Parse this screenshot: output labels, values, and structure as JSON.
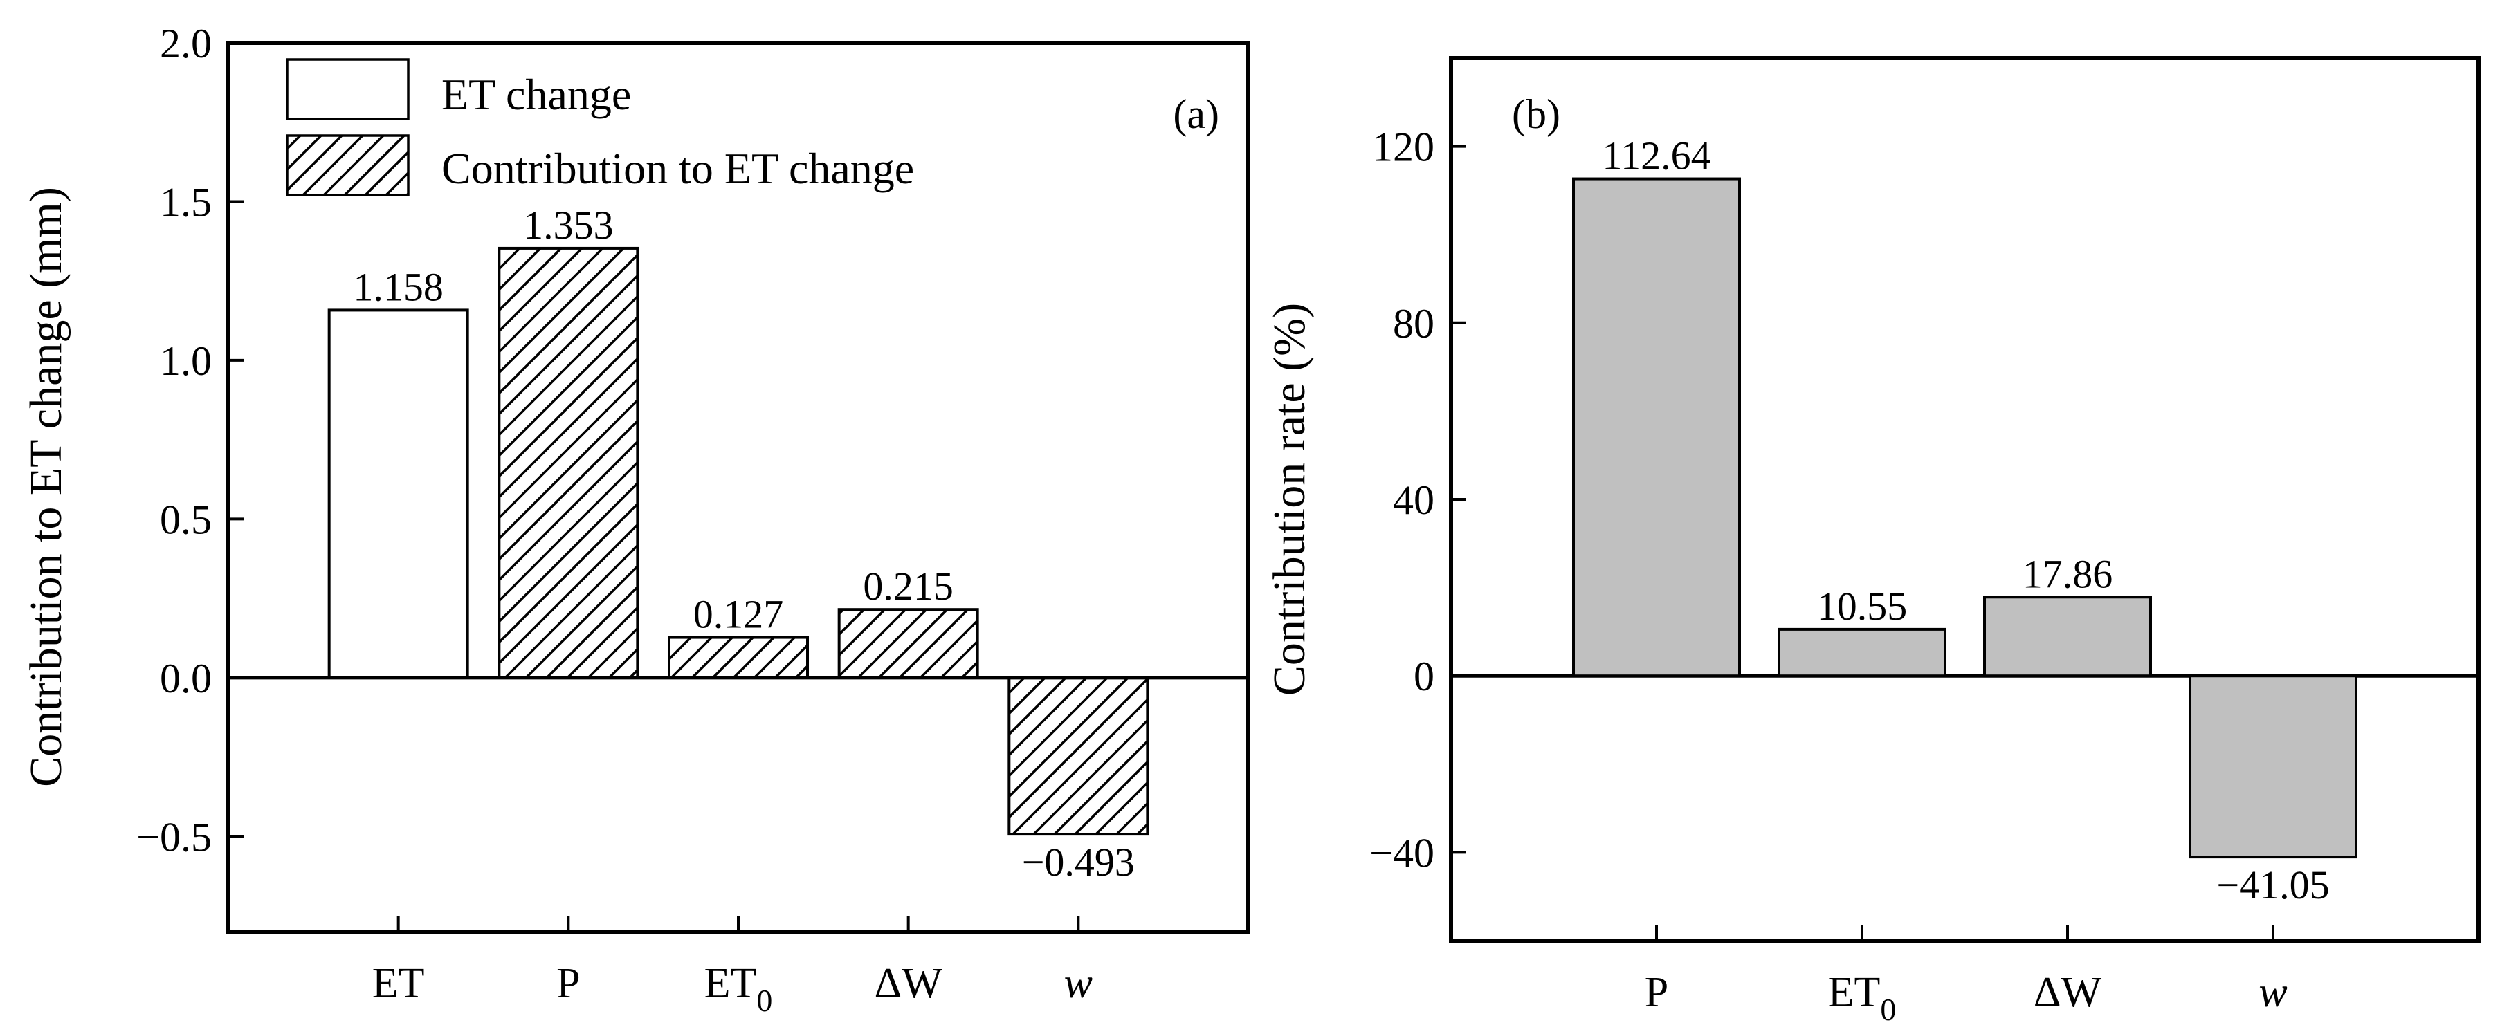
{
  "chart_data": [
    {
      "panel": "(a)",
      "type": "bar",
      "ylabel": "Contribution to ET change (mm)",
      "xlabel": "",
      "ylim": [
        -0.8,
        2.0
      ],
      "yticks": [
        -0.5,
        0.0,
        0.5,
        1.0,
        1.5,
        2.0
      ],
      "ytick_labels": [
        "−0.5",
        "0.0",
        "0.5",
        "1.0",
        "1.5",
        "2.0"
      ],
      "zero_line": true,
      "legend_position": "top-left",
      "legend": [
        {
          "label": "ET change",
          "style": "open"
        },
        {
          "label": "Contribution to ET change",
          "style": "hatched"
        }
      ],
      "categories": [
        {
          "main": "ET",
          "sub": "",
          "italic": false
        },
        {
          "main": "P",
          "sub": "",
          "italic": false
        },
        {
          "main": "ET",
          "sub": "0",
          "italic": false
        },
        {
          "main": "ΔW",
          "sub": "",
          "italic": false
        },
        {
          "main": "w",
          "sub": "",
          "italic": true
        }
      ],
      "values": [
        1.158,
        1.353,
        0.127,
        0.215,
        -0.493
      ],
      "value_labels": [
        "1.158",
        "1.353",
        "0.127",
        "0.215",
        "−0.493"
      ],
      "bar_styles": [
        "open",
        "hatched",
        "hatched",
        "hatched",
        "hatched"
      ]
    },
    {
      "panel": "(b)",
      "type": "bar",
      "ylabel": "Contribution rate (%)",
      "xlabel": "",
      "ylim": [
        -60,
        140
      ],
      "yticks": [
        -40,
        0,
        40,
        80,
        120
      ],
      "ytick_labels": [
        "−40",
        "0",
        "40",
        "80",
        "120"
      ],
      "zero_line": true,
      "categories": [
        {
          "main": "P",
          "sub": "",
          "italic": false
        },
        {
          "main": "ET",
          "sub": "0",
          "italic": false
        },
        {
          "main": "ΔW",
          "sub": "",
          "italic": false
        },
        {
          "main": "w",
          "sub": "",
          "italic": true
        }
      ],
      "values": [
        112.64,
        10.55,
        17.86,
        -41.05
      ],
      "value_labels": [
        "112.64",
        "10.55",
        "17.86",
        "−41.05"
      ],
      "bar_color": "#c0c0c0"
    }
  ]
}
